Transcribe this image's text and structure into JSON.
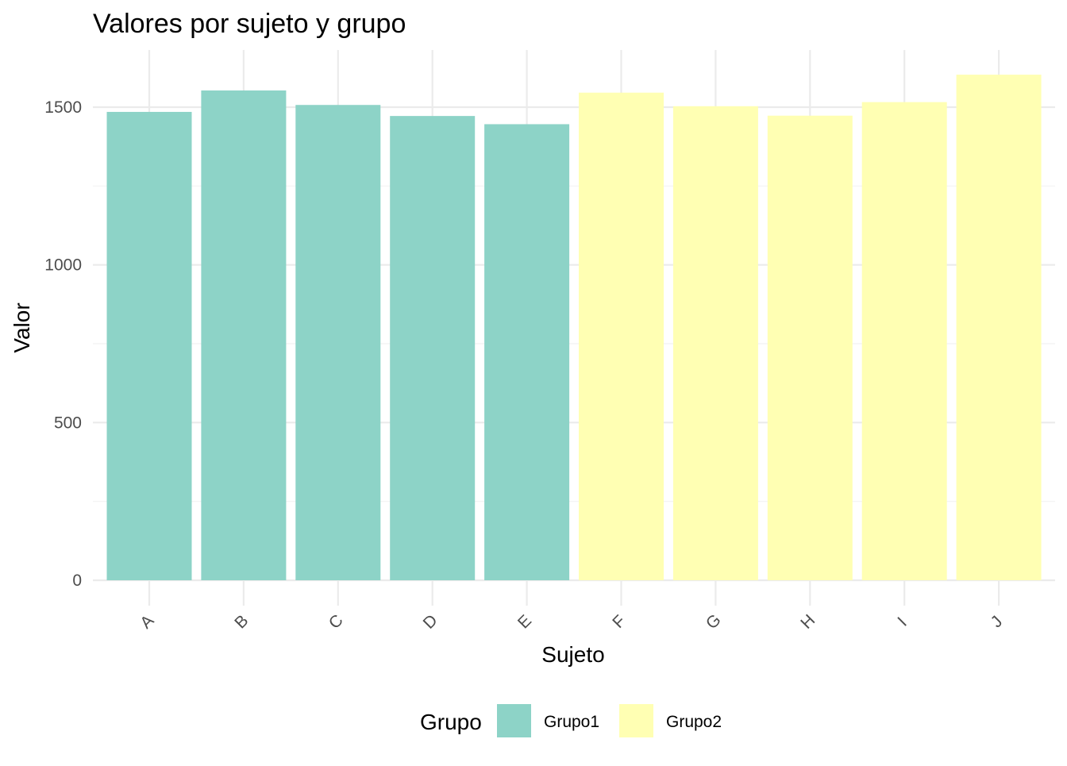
{
  "chart_data": {
    "type": "bar",
    "title": "Valores por sujeto y grupo",
    "xlabel": "Sujeto",
    "ylabel": "Valor",
    "categories": [
      "A",
      "B",
      "C",
      "D",
      "E",
      "F",
      "G",
      "H",
      "I",
      "J"
    ],
    "values": [
      1485,
      1553,
      1507,
      1472,
      1446,
      1546,
      1503,
      1473,
      1516,
      1603
    ],
    "groups": [
      "Grupo1",
      "Grupo1",
      "Grupo1",
      "Grupo1",
      "Grupo1",
      "Grupo2",
      "Grupo2",
      "Grupo2",
      "Grupo2",
      "Grupo2"
    ],
    "ylim": [
      0,
      1680
    ],
    "yticks": [
      0,
      500,
      1000,
      1500
    ],
    "grid": true,
    "legend": {
      "title": "Grupo",
      "placement": "bottom",
      "entries": [
        {
          "name": "Grupo1",
          "color": "#8dd3c7"
        },
        {
          "name": "Grupo2",
          "color": "#ffffb3"
        }
      ]
    }
  }
}
